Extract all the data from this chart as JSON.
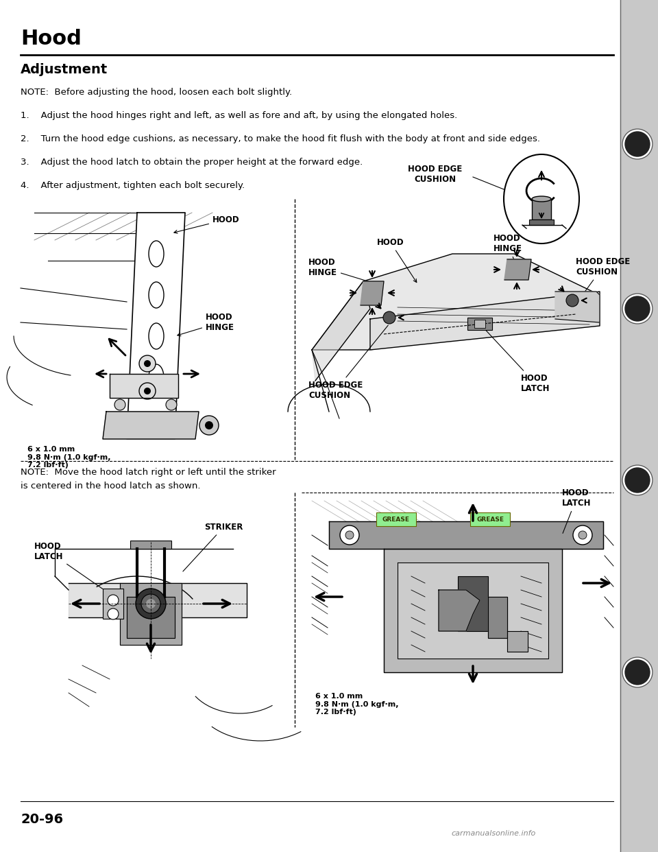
{
  "title": "Hood",
  "section_title": "Adjustment",
  "note_text": "NOTE:  Before adjusting the hood, loosen each bolt slightly.",
  "step1": "1.    Adjust the hood hinges right and left, as well as fore and aft, by using the elongated holes.",
  "step2": "2.    Turn the hood edge cushions, as necessary, to make the hood fit flush with the body at front and side edges.",
  "step3": "3.    Adjust the hood latch to obtain the proper height at the forward edge.",
  "step4": "4.    After adjustment, tighten each bolt securely.",
  "note2_line1": "NOTE:  Move the hood latch right or left until the striker",
  "note2_line2": "is centered in the hood latch as shown.",
  "bolt_spec": "6 x 1.0 mm\n9.8 N·m (1.0 kgf·m,\n7.2 lbf·ft)",
  "bolt_spec2": "6 x 1.0 mm\n9.8 N·m (1.0 kgf·m,\n7.2 lbf·ft)",
  "page_number": "20-96",
  "watermark": "carmanualsonline.info",
  "bg_color": "#ffffff",
  "text_color": "#000000",
  "label_HOOD_top": "HOOD",
  "label_HOOD_HINGE": "HOOD\nHINGE",
  "label_HOOD_EDGE_CUSHION": "HOOD EDGE\nCUSHION",
  "label_HOOD_top2": "HOOD",
  "label_HOOD_HINGE2": "HOOD\nHINGE",
  "label_HOOD_HINGE3": "HOOD\nHINGE",
  "label_HOOD_EDGE_CUSHION2": "HOOD EDGE\nCUSHION",
  "label_HOOD_EDGE_CUSHION3": "HOOD EDGE\nCUSHION",
  "label_HOOD_LATCH": "HOOD\nLATCH",
  "label_HOOD_LATCH2": "HOOD\nLATCH",
  "label_STRIKER": "STRIKER",
  "label_GREASE": "GREASE",
  "page_width": 9.6,
  "page_height": 12.42
}
